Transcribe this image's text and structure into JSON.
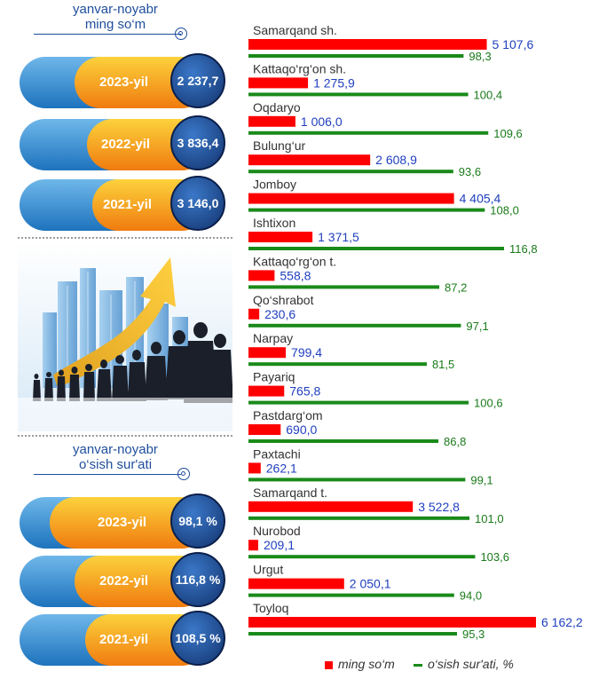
{
  "totals": {
    "period": "yanvar-noyabr",
    "unit": "ming  so‘m",
    "years": [
      {
        "label": "2023-yil",
        "value": "2 237,7"
      },
      {
        "label": "2022-yil",
        "value": "3 836,4"
      },
      {
        "label": "2021-yil",
        "value": "3 146,0"
      }
    ]
  },
  "growth": {
    "period": "yanvar-noyabr",
    "subtitle": "o‘sish sur'ati",
    "years": [
      {
        "label": "2023-yil",
        "value": "98,1 %"
      },
      {
        "label": "2022-yil",
        "value": "116,8 %"
      },
      {
        "label": "2021-yil",
        "value": "108,5 %"
      }
    ]
  },
  "legend": {
    "money": "ming so‘m",
    "growth": "o‘sish sur'ati, %"
  },
  "colors": {
    "money_bar": "#ff0000",
    "growth_bar": "#1a8a1a",
    "money_label": "#1f3fbf",
    "growth_label": "#1a7a1a",
    "blue_pill": "#1d73bd",
    "orange_pill": "#f07b0f",
    "circle": "#12336e"
  },
  "illustration": {
    "icon": "business-growth-illustration"
  },
  "chart_data": {
    "type": "bar",
    "orientation": "horizontal",
    "categories": [
      "Samarqand sh.",
      "Kattaqo‘rg‘on sh.",
      "Oqdaryo",
      "Bulung‘ur",
      "Jomboy",
      "Ishtixon",
      "Kattaqo‘rg‘on t.",
      "Qo‘shrabot",
      "Narpay",
      "Payariq",
      "Pastdarg‘om",
      "Paxtachi",
      "Samarqand t.",
      "Nurobod",
      "Urgut",
      "Toyloq"
    ],
    "series": [
      {
        "name": "ming so‘m",
        "values": [
          5107.6,
          1275.9,
          1006.0,
          2608.9,
          4405.4,
          1371.5,
          558.8,
          230.6,
          799.4,
          765.8,
          690.0,
          262.1,
          3522.8,
          209.1,
          2050.1,
          6162.2
        ],
        "labels": [
          "5 107,6",
          "1 275,9",
          "1 006,0",
          "2 608,9",
          "4 405,4",
          "1 371,5",
          "558,8",
          "230,6",
          "799,4",
          "765,8",
          "690,0",
          "262,1",
          "3 522,8",
          "209,1",
          "2 050,1",
          "6 162,2"
        ]
      },
      {
        "name": "o‘sish sur'ati, %",
        "values": [
          98.3,
          100.4,
          109.6,
          93.6,
          108.0,
          116.8,
          87.2,
          97.1,
          81.5,
          100.6,
          86.8,
          99.1,
          101.0,
          103.6,
          94.0,
          95.3
        ],
        "labels": [
          "98,3",
          "100,4",
          "109,6",
          "93,6",
          "108,0",
          "116,8",
          "87,2",
          "97,1",
          "81,5",
          "100,6",
          "86,8",
          "99,1",
          "101,0",
          "103,6",
          "94,0",
          "95,3"
        ]
      }
    ]
  }
}
